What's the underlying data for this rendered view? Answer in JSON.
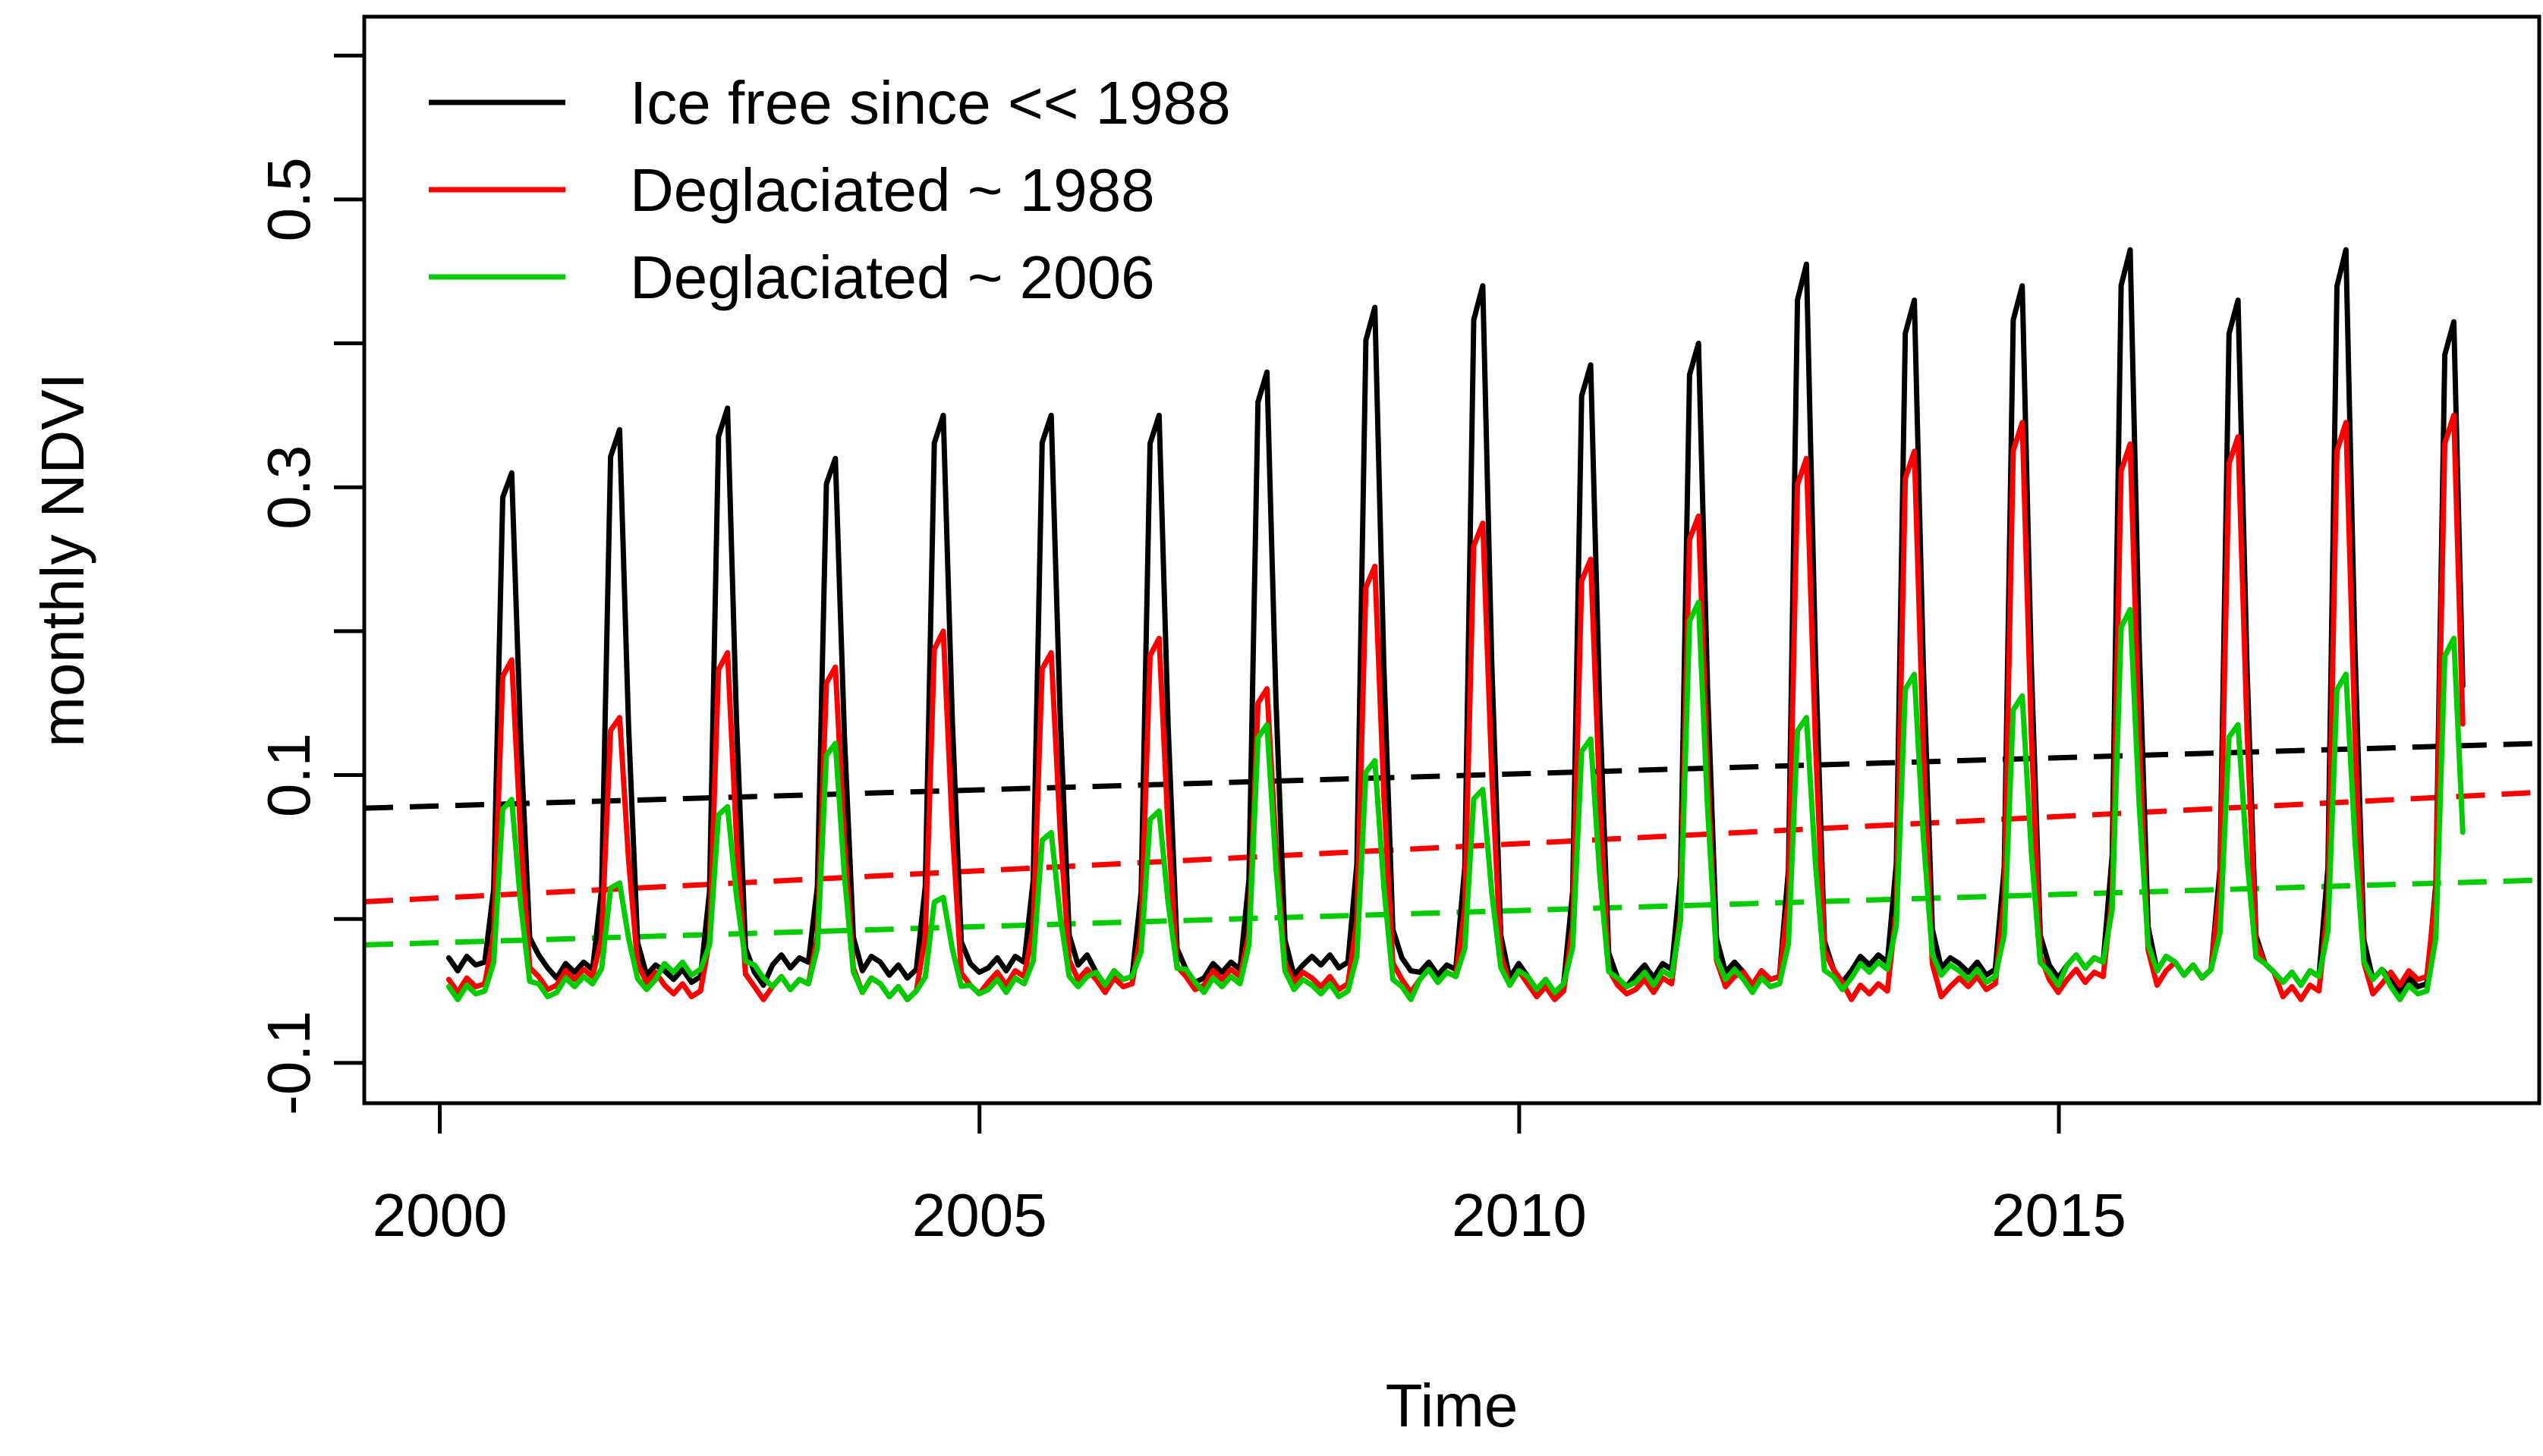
{
  "chart_data": {
    "type": "line",
    "title": "",
    "xlabel": "Time",
    "ylabel": "monthly NDVI",
    "xlim": [
      1999.3,
      2019.45
    ],
    "ylim": [
      -0.128,
      0.627
    ],
    "x_ticks": [
      2000,
      2005,
      2010,
      2015
    ],
    "x_tick_labels": [
      "2000",
      "2005",
      "2010",
      "2015"
    ],
    "y_ticks": [
      -0.1,
      0.0,
      0.1,
      0.2,
      0.3,
      0.4,
      0.5,
      0.6
    ],
    "y_tick_labels": [
      "-0.1",
      "",
      "0.1",
      "",
      "0.3",
      "",
      "0.5",
      ""
    ],
    "legend_position": "top-left",
    "legend": [
      {
        "label": "Ice free since << 1988",
        "color": "#000000"
      },
      {
        "label": "Deglaciated ~ 1988",
        "color": "#ff0000"
      },
      {
        "label": "Deglaciated ~ 2006",
        "color": "#00cc00"
      }
    ],
    "time_start": 2000.083,
    "time_step": 0.0833,
    "series": [
      {
        "name": "Ice free since << 1988",
        "color": "#000000",
        "peaks": [
          0.31,
          0.34,
          0.355,
          0.32,
          0.35,
          0.35,
          0.35,
          0.38,
          0.425,
          0.44,
          0.385,
          0.4,
          0.455,
          0.43,
          0.44,
          0.465,
          0.43,
          0.465,
          0.415
        ],
        "winter_values": [
          -0.03,
          -0.035,
          -0.04,
          -0.03,
          -0.035,
          -0.03,
          -0.04,
          -0.035,
          -0.03,
          -0.035,
          -0.045,
          -0.035,
          -0.04,
          -0.03,
          -0.035,
          -0.03,
          -0.035,
          -0.04,
          -0.045
        ],
        "trend": {
          "start": 0.077,
          "end": 0.122
        }
      },
      {
        "name": "Deglaciated ~ 1988",
        "color": "#ff0000",
        "peaks": [
          0.18,
          0.14,
          0.185,
          0.175,
          0.2,
          0.185,
          0.195,
          0.16,
          0.245,
          0.275,
          0.25,
          0.28,
          0.32,
          0.325,
          0.345,
          0.33,
          0.335,
          0.345,
          0.35
        ],
        "winter_values": [
          -0.045,
          -0.04,
          -0.05,
          -0.045,
          -0.05,
          -0.04,
          -0.045,
          -0.04,
          -0.045,
          -0.04,
          -0.05,
          -0.045,
          -0.04,
          -0.05,
          -0.045,
          -0.04,
          -0.035,
          -0.05,
          -0.04
        ],
        "trend": {
          "start": 0.012,
          "end": 0.088
        }
      },
      {
        "name": "Deglaciated ~ 2006",
        "color": "#00cc00",
        "peaks": [
          0.083,
          0.025,
          0.078,
          0.122,
          0.015,
          0.06,
          0.075,
          0.135,
          0.11,
          0.09,
          0.125,
          0.22,
          0.14,
          0.17,
          0.155,
          0.215,
          0.135,
          0.17,
          0.195
        ],
        "winter_values": [
          -0.05,
          -0.045,
          -0.035,
          -0.045,
          -0.05,
          -0.045,
          -0.04,
          -0.045,
          -0.05,
          -0.04,
          -0.045,
          -0.04,
          -0.045,
          -0.035,
          -0.04,
          -0.03,
          -0.035,
          -0.04,
          -0.05
        ],
        "trend": {
          "start": -0.018,
          "end": 0.027
        }
      }
    ]
  }
}
